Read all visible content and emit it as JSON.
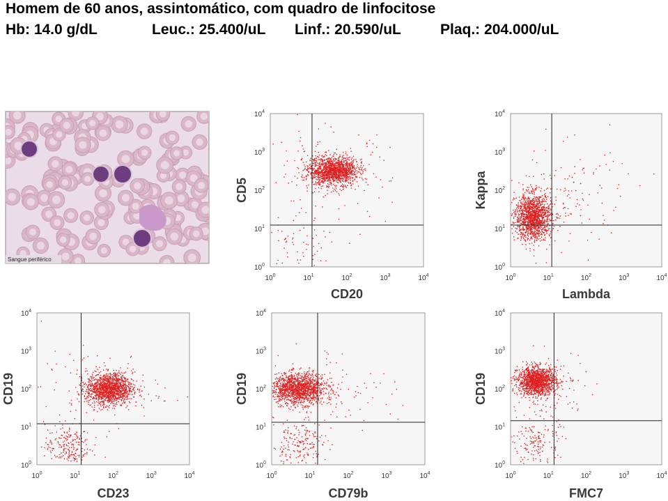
{
  "header": {
    "title": "Homem de 60 anos, assintomático, com quadro de linfocitose",
    "stats": [
      "Hb: 14.0 g/dL",
      "Leuc.: 25.400/uL",
      "Linf.: 20.590/uL",
      "Plaq.: 204.000/uL"
    ]
  },
  "image": {
    "caption": "Sangue periférico"
  },
  "tick_labels": [
    {
      "base": "10",
      "exponent": "0"
    },
    {
      "base": "10",
      "exponent": "1"
    },
    {
      "base": "10",
      "exponent": "2"
    },
    {
      "base": "10",
      "exponent": "3"
    },
    {
      "base": "10",
      "exponent": "4"
    }
  ],
  "plots": [
    {
      "x_label": "CD20",
      "y_label": "CD5"
    },
    {
      "x_label": "Lambda",
      "y_label": "Kappa"
    },
    {
      "x_label": "CD23",
      "y_label": "CD19"
    },
    {
      "x_label": "CD79b",
      "y_label": "CD19"
    },
    {
      "x_label": "FMC7",
      "y_label": "CD19"
    }
  ]
}
